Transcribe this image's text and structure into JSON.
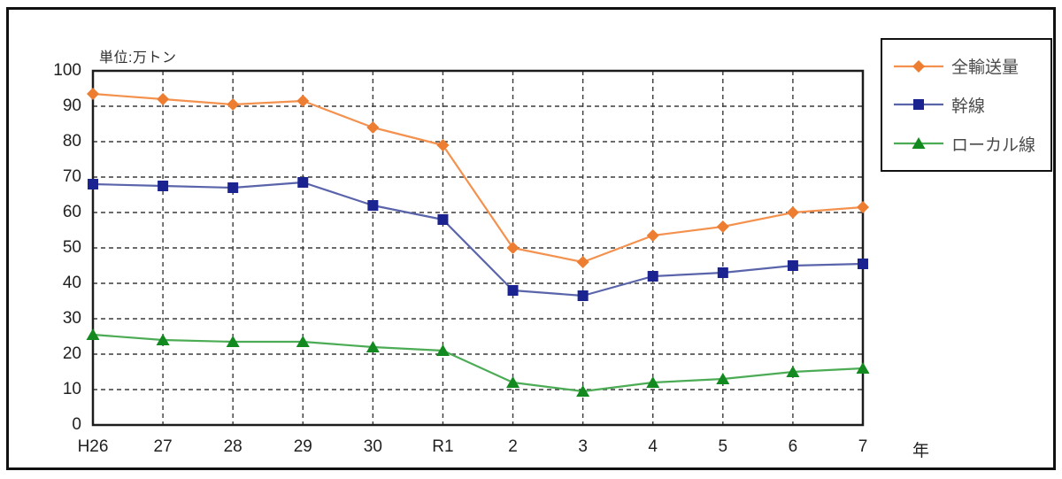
{
  "figure": {
    "unit_label": "単位:万トン",
    "x_axis_suffix": "年"
  },
  "chart_data": {
    "type": "line",
    "title": "",
    "xlabel": "年",
    "ylabel": "単位:万トン",
    "x_labels": [
      "H26",
      "27",
      "28",
      "29",
      "30",
      "R1",
      "2",
      "3",
      "4",
      "5",
      "6",
      "7"
    ],
    "y_ticks": [
      0,
      10,
      20,
      30,
      40,
      50,
      60,
      70,
      80,
      90,
      100
    ],
    "ylim": [
      0,
      100
    ],
    "grid": "dashed-both-axes",
    "legend_position": "top-right",
    "axis_color": "#1c1c1c",
    "grid_color": "#3a3a3a",
    "series": [
      {
        "name": "全輸送量",
        "marker": "diamond",
        "line_color": "#F4914E",
        "marker_color": "#ED7D31",
        "values": [
          93.5,
          92,
          90.5,
          91.5,
          84,
          79,
          50,
          46,
          53.5,
          56,
          60,
          61.5
        ]
      },
      {
        "name": "幹線",
        "marker": "square",
        "line_color": "#5A64AA",
        "marker_color": "#1A2390",
        "values": [
          68,
          67.5,
          67,
          68.5,
          62,
          58,
          38,
          36.5,
          42,
          43,
          45,
          45.5
        ]
      },
      {
        "name": "ローカル線",
        "marker": "triangle",
        "line_color": "#4CAC55",
        "marker_color": "#128A20",
        "values": [
          25.5,
          24,
          23.5,
          23.5,
          22,
          21,
          12,
          9.5,
          12,
          13,
          15,
          16
        ]
      }
    ]
  }
}
